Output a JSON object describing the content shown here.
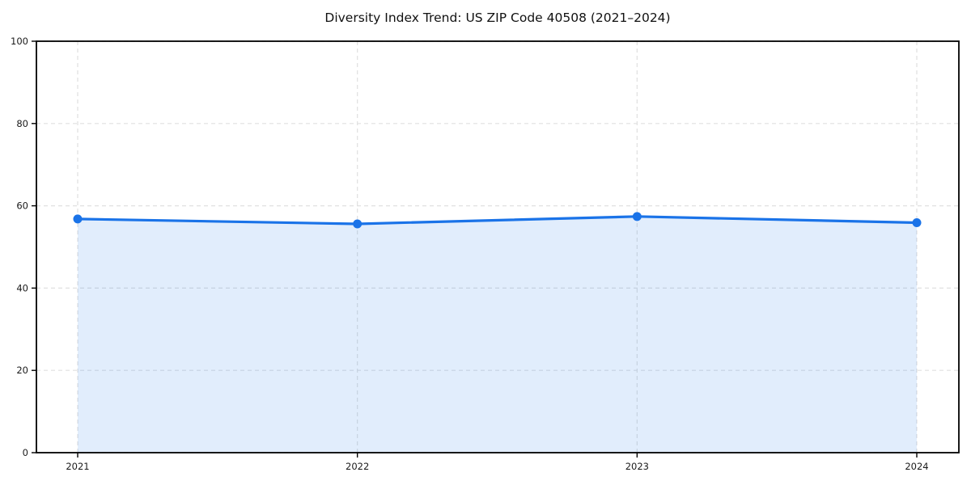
{
  "chart_data": {
    "type": "area",
    "title": "Diversity Index Trend: US ZIP Code 40508 (2021–2024)",
    "series_name": "Diversity Index",
    "categories": [
      "2021",
      "2022",
      "2023",
      "2024"
    ],
    "x": [
      2021,
      2022,
      2023,
      2024
    ],
    "values": [
      56.8,
      55.6,
      57.4,
      55.9
    ],
    "xlabel": "",
    "ylabel": "",
    "ylim": [
      0,
      100
    ],
    "yticks": [
      0,
      20,
      40,
      60,
      80,
      100
    ],
    "grid": true,
    "grid_style": "dashed",
    "legend_position": "none",
    "colors": {
      "line": "#1a73e8",
      "marker": "#1a73e8",
      "fill": "rgba(26,115,232,0.13)",
      "grid": "#e0e0e0",
      "axis_border": "#000000",
      "tick_text": "#1a1a1a",
      "background": "#ffffff"
    }
  }
}
